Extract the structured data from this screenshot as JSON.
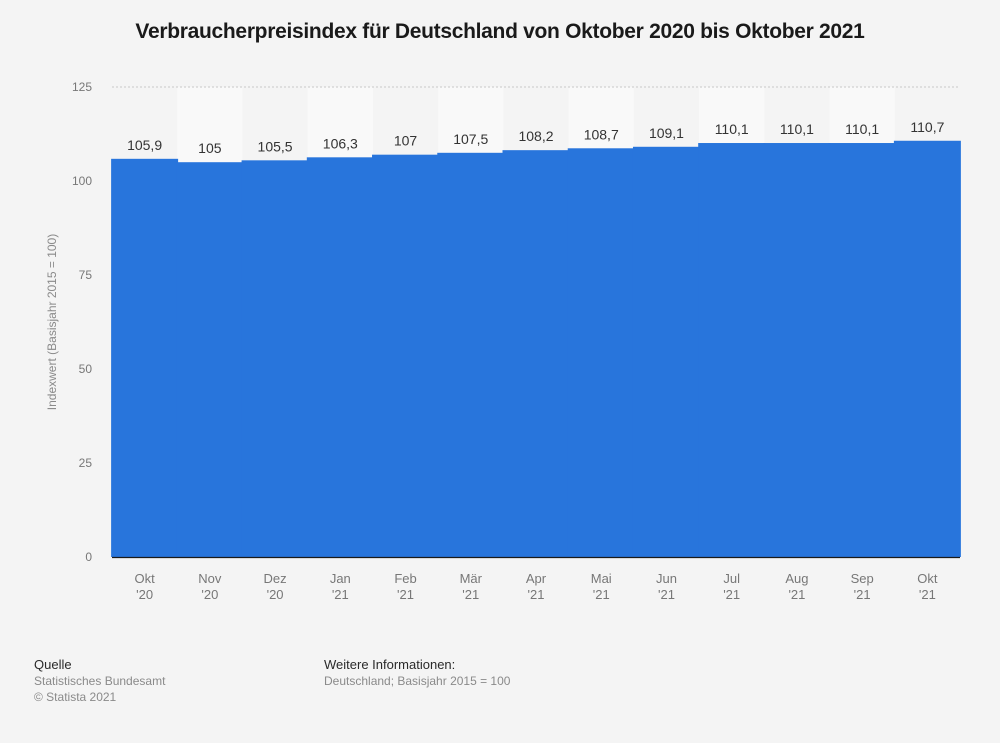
{
  "title": "Verbraucherpreisindex für Deutschland von Oktober 2020 bis Oktober 2021",
  "colors": {
    "bar": "#2875dc",
    "background": "#f4f4f4",
    "band": "#f9f9f9",
    "grid": "#c8c8c8",
    "axis": "#1a1a1a",
    "tick_text": "#777777",
    "label_text": "#333333"
  },
  "chart_data": {
    "type": "bar",
    "title": "Verbraucherpreisindex für Deutschland von Oktober 2020 bis Oktober 2021",
    "xlabel": "",
    "ylabel": "Indexwert (Basisjahr 2015 = 100)",
    "ylim": [
      0,
      125
    ],
    "yticks": [
      0,
      25,
      50,
      75,
      100,
      125
    ],
    "ytick_labels": [
      "0",
      "25",
      "50",
      "75",
      "100",
      "125"
    ],
    "grid": true,
    "categories": [
      [
        "Okt",
        "'20"
      ],
      [
        "Nov",
        "'20"
      ],
      [
        "Dez",
        "'20"
      ],
      [
        "Jan",
        "'21"
      ],
      [
        "Feb",
        "'21"
      ],
      [
        "Mär",
        "'21"
      ],
      [
        "Apr",
        "'21"
      ],
      [
        "Mai",
        "'21"
      ],
      [
        "Jun",
        "'21"
      ],
      [
        "Jul",
        "'21"
      ],
      [
        "Aug",
        "'21"
      ],
      [
        "Sep",
        "'21"
      ],
      [
        "Okt",
        "'21"
      ]
    ],
    "values": [
      105.9,
      105,
      105.5,
      106.3,
      107,
      107.5,
      108.2,
      108.7,
      109.1,
      110.1,
      110.1,
      110.1,
      110.7
    ],
    "value_labels": [
      "105,9",
      "105",
      "105,5",
      "106,3",
      "107",
      "107,5",
      "108,2",
      "108,7",
      "109,1",
      "110,1",
      "110,1",
      "110,1",
      "110,7"
    ]
  },
  "footer": {
    "source_heading": "Quelle",
    "source_name": "Statistisches Bundesamt",
    "copyright": "© Statista 2021",
    "info_heading": "Weitere Informationen:",
    "info_text": "Deutschland; Basisjahr 2015 = 100"
  }
}
